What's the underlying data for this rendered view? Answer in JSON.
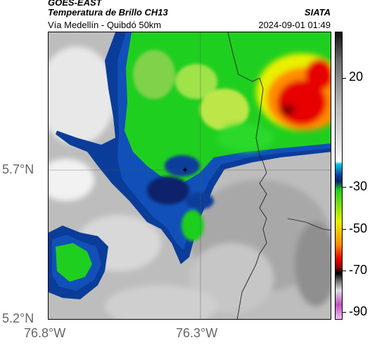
{
  "header": {
    "source": "GOES-EAST",
    "product": "Temperatura de Brillo CH13",
    "institution": "SIATA",
    "region": "Vía Medellín - Quibdó 50km",
    "timestamp": "2024-09-01 01:49"
  },
  "map": {
    "lat_labels": [
      "5.7°N",
      "5.2°N"
    ],
    "lon_labels": [
      "76.8°W",
      "76.3°W"
    ],
    "gridlines": true,
    "marker": "location-star"
  },
  "colorbar": {
    "labels": [
      "20",
      "-30",
      "-50",
      "-70",
      "-90"
    ],
    "colors": {
      "warm_gray_light": "#f0f0f0",
      "warm_gray_dark": "#8a8a8a",
      "cyan": "#00c8e6",
      "blue": "#0a3c9a",
      "dark_blue": "#08246a",
      "green": "#1fcf1f",
      "yellow": "#e8f000",
      "orange": "#ff8c00",
      "red": "#e60000",
      "dark_red": "#8c0000",
      "black": "#000000",
      "magenta": "#c050c0"
    }
  }
}
